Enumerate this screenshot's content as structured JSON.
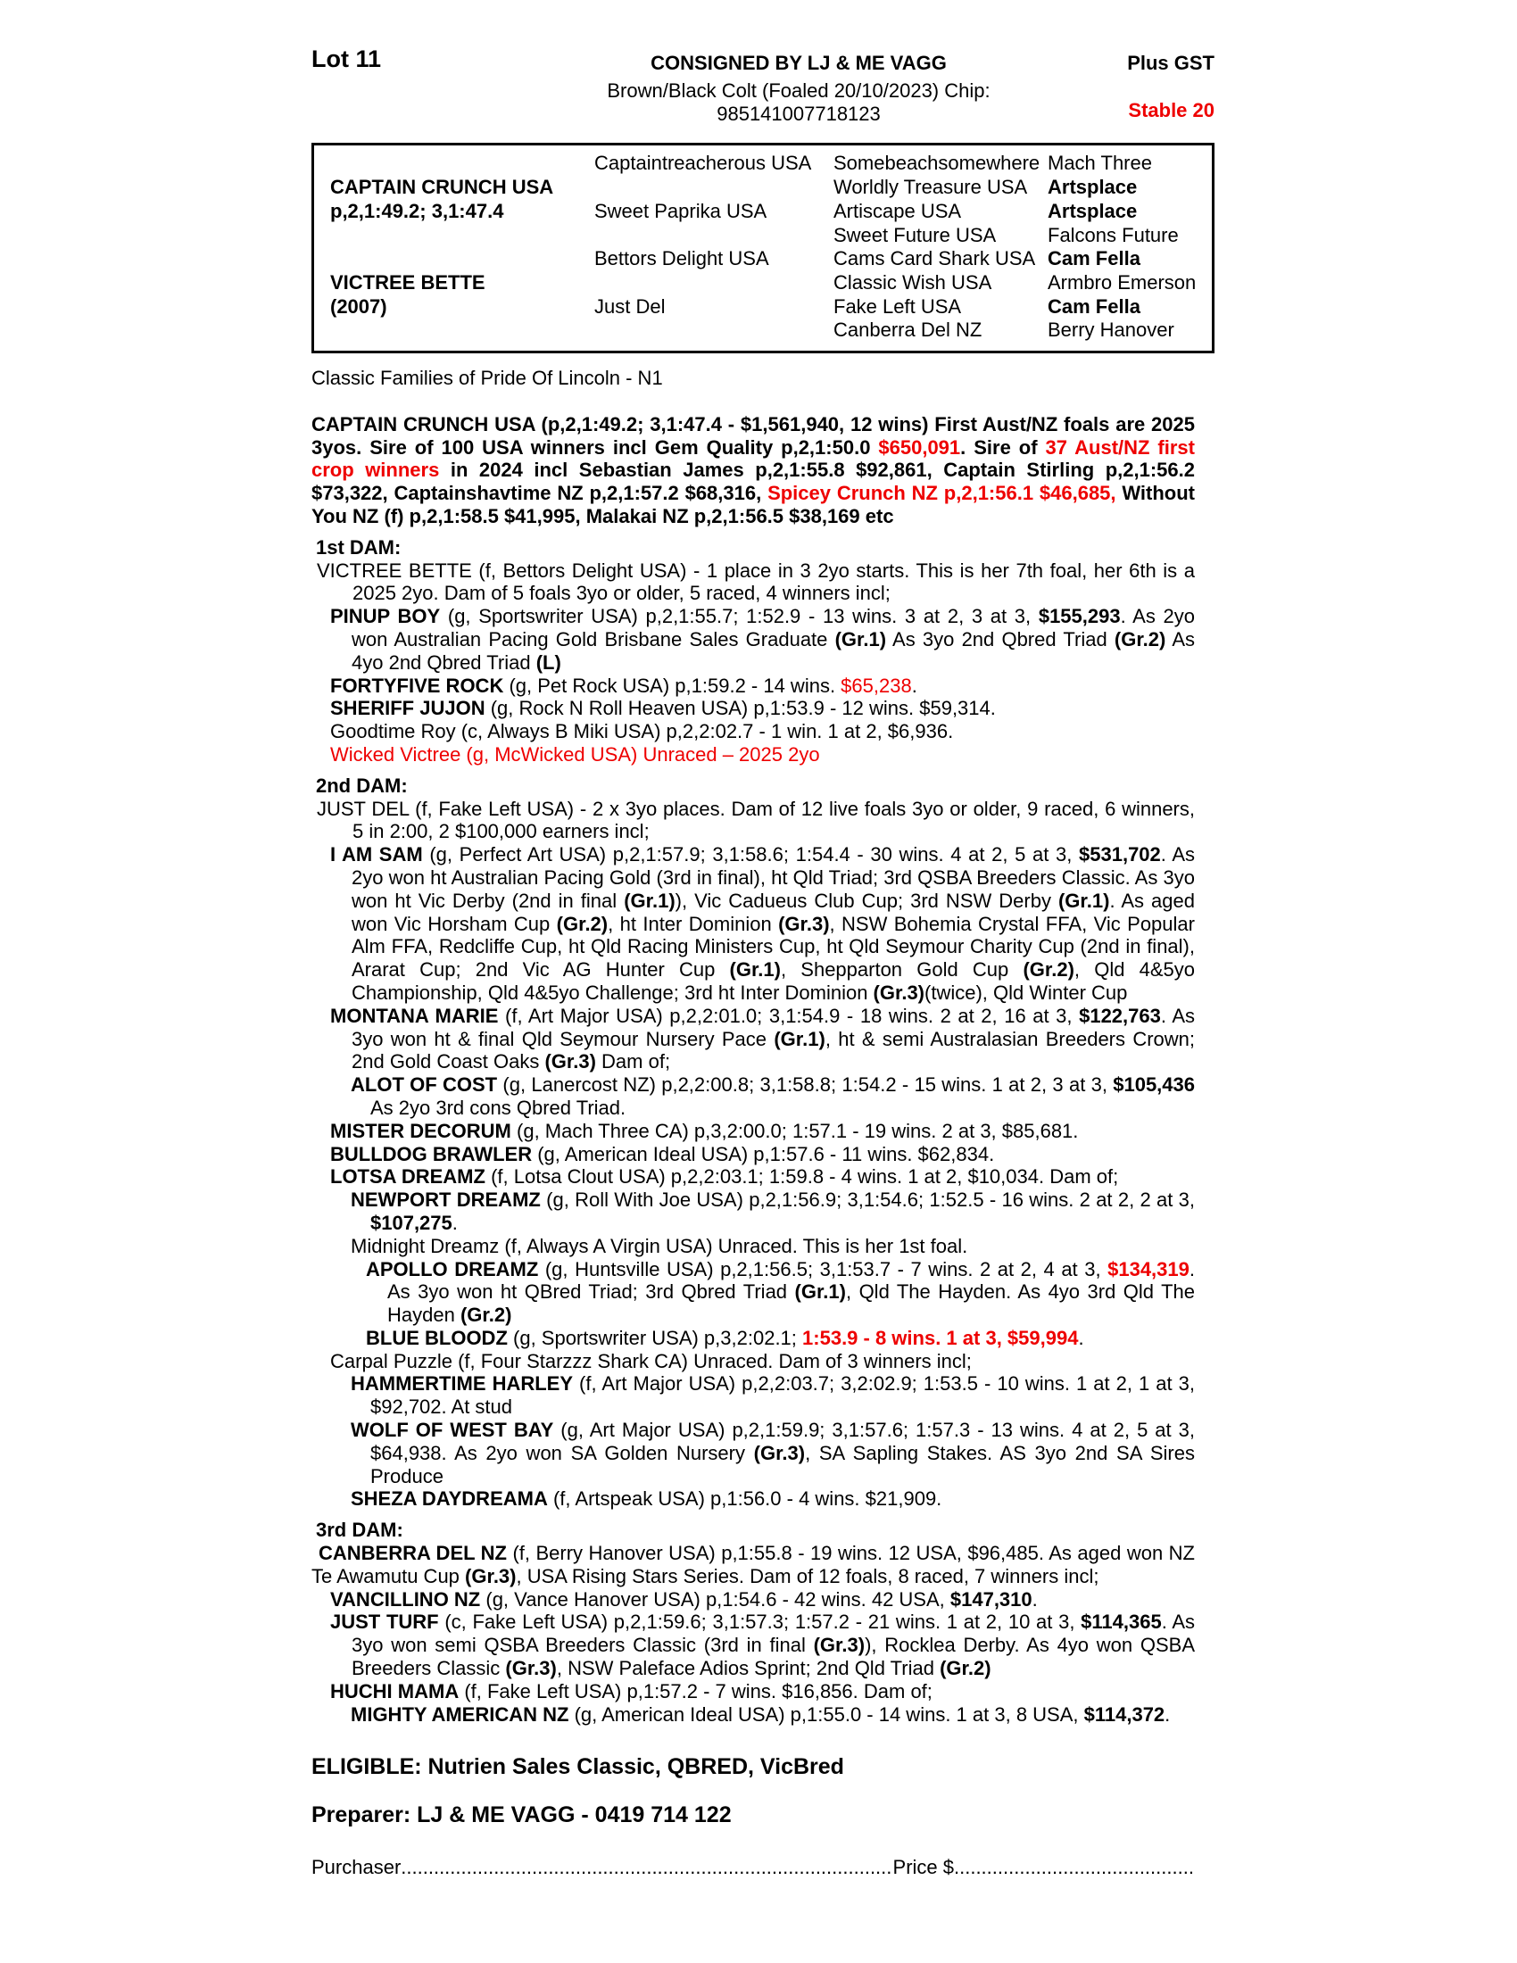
{
  "header": {
    "lot": "Lot 11",
    "consignor": "CONSIGNED BY LJ & ME VAGG",
    "gst": "Plus GST",
    "description": "Brown/Black Colt (Foaled 20/10/2023) Chip: 985141007718123",
    "stable": "Stable 20"
  },
  "colors": {
    "accent_red": "#ee0000",
    "text": "#000000"
  },
  "pedigree": {
    "rows": [
      {
        "c1": "",
        "c2": "Captaintreacherous USA",
        "c3": "Somebeachsomewhere",
        "c4": "Mach Three",
        "c4b": false
      },
      {
        "c1": "CAPTAIN CRUNCH USA",
        "c2": "",
        "c3": "Worldly Treasure USA",
        "c4": "Artsplace",
        "c4b": true
      },
      {
        "c1": "p,2,1:49.2; 3,1:47.4",
        "c2": "Sweet Paprika USA",
        "c3": "Artiscape USA",
        "c4": "Artsplace",
        "c4b": true
      },
      {
        "c1": "",
        "c2": "",
        "c3": "Sweet Future USA",
        "c4": "Falcons Future",
        "c4b": false
      },
      {
        "c1": "",
        "c2": "Bettors Delight USA",
        "c3": "Cams Card Shark USA",
        "c4": "Cam Fella",
        "c4b": true
      },
      {
        "c1": "VICTREE BETTE",
        "c2": "",
        "c3": "Classic Wish USA",
        "c4": "Armbro Emerson",
        "c4b": false
      },
      {
        "c1": "(2007)",
        "c2": "Just Del",
        "c3": "Fake Left USA",
        "c4": "Cam Fella",
        "c4b": true
      },
      {
        "c1": "",
        "c2": "",
        "c3": "Canberra Del NZ",
        "c4": "Berry Hanover",
        "c4b": false
      }
    ]
  },
  "family_line": "Classic Families of Pride Of Lincoln - N1",
  "sire_paragraph": [
    {
      "t": "CAPTAIN CRUNCH USA (p,2,1:49.2; 3,1:47.4 - $1,561,940, 12 wins) First Aust/NZ foals are 2025 3yos. Sire of 100 USA winners incl Gem Quality p,2,1:50.0 ",
      "s": "b"
    },
    {
      "t": "$650,091",
      "s": "br"
    },
    {
      "t": ". Sire of ",
      "s": "b"
    },
    {
      "t": "37 Aust/NZ first crop winners",
      "s": "br"
    },
    {
      "t": " in 2024 incl Sebastian James p,2,1:55.8 $92,861, Captain Stirling p,2,1:56.2 $73,322, Captainshavtime NZ p,2,1:57.2 $68,316, ",
      "s": "b"
    },
    {
      "t": "Spicey Crunch NZ p,2,1:56.1 $46,685,",
      "s": "br"
    },
    {
      "t": " Without You NZ (f) p,2,1:58.5 $41,995, Malakai NZ p,2,1:56.5 $38,169 etc",
      "s": "b"
    }
  ],
  "sections": [
    {
      "heading": "1st DAM:",
      "entries": [
        {
          "ind": "d",
          "segs": [
            {
              "t": "VICTREE BETTE (f, Bettors Delight USA) - 1 place in 3 2yo starts. This is her 7th foal, her 6th is a 2025 2yo. Dam of 5 foals 3yo or older, 5 raced, 4 winners incl;",
              "s": ""
            }
          ]
        },
        {
          "ind": "1",
          "segs": [
            {
              "t": "PINUP BOY",
              "s": "b"
            },
            {
              "t": " (g, Sportswriter USA) p,2,1:55.7; 1:52.9 - 13 wins. 3 at 2, 3 at 3, ",
              "s": ""
            },
            {
              "t": "$155,293",
              "s": "b"
            },
            {
              "t": ". As 2yo won Australian Pacing Gold Brisbane Sales Graduate ",
              "s": ""
            },
            {
              "t": "(Gr.1)",
              "s": "b"
            },
            {
              "t": " As 3yo 2nd Qbred Triad ",
              "s": ""
            },
            {
              "t": "(Gr.2)",
              "s": "b"
            },
            {
              "t": " As 4yo 2nd Qbred Triad ",
              "s": ""
            },
            {
              "t": "(L)",
              "s": "b"
            }
          ]
        },
        {
          "ind": "1",
          "segs": [
            {
              "t": "FORTYFIVE ROCK",
              "s": "b"
            },
            {
              "t": " (g, Pet Rock USA) p,1:59.2 - 14 wins. ",
              "s": ""
            },
            {
              "t": "$65,238",
              "s": "r"
            },
            {
              "t": ".",
              "s": ""
            }
          ]
        },
        {
          "ind": "1",
          "segs": [
            {
              "t": "SHERIFF JUJON",
              "s": "b"
            },
            {
              "t": " (g, Rock N Roll Heaven USA) p,1:53.9 - 12 wins. $59,314.",
              "s": ""
            }
          ]
        },
        {
          "ind": "1",
          "segs": [
            {
              "t": "Goodtime Roy (c, Always B Miki USA) p,2,2:02.7 - 1 win. 1 at 2, $6,936.",
              "s": ""
            }
          ]
        },
        {
          "ind": "1",
          "segs": [
            {
              "t": "Wicked Victree (g, McWicked USA) Unraced – 2025 2yo",
              "s": "r"
            }
          ]
        }
      ]
    },
    {
      "heading": "2nd DAM:",
      "entries": [
        {
          "ind": "d",
          "segs": [
            {
              "t": "JUST DEL (f, Fake Left USA) - 2 x 3yo places. Dam of 12 live foals 3yo or older, 9 raced, 6 winners, 5 in 2:00, 2 $100,000 earners incl;",
              "s": ""
            }
          ]
        },
        {
          "ind": "1",
          "segs": [
            {
              "t": "I AM SAM",
              "s": "b"
            },
            {
              "t": " (g, Perfect Art USA) p,2,1:57.9; 3,1:58.6; 1:54.4 - 30 wins. 4 at 2, 5 at 3, ",
              "s": ""
            },
            {
              "t": "$531,702",
              "s": "b"
            },
            {
              "t": ". As 2yo won ht Australian Pacing Gold (3rd in final), ht Qld Triad; 3rd QSBA Breeders Classic. As 3yo won ht Vic Derby (2nd in final ",
              "s": ""
            },
            {
              "t": "(Gr.1)",
              "s": "b"
            },
            {
              "t": "), Vic Cadueus Club Cup; 3rd NSW Derby ",
              "s": ""
            },
            {
              "t": "(Gr.1)",
              "s": "b"
            },
            {
              "t": ". As aged won Vic Horsham Cup ",
              "s": ""
            },
            {
              "t": "(Gr.2)",
              "s": "b"
            },
            {
              "t": ", ht Inter Dominion ",
              "s": ""
            },
            {
              "t": "(Gr.3)",
              "s": "b"
            },
            {
              "t": ", NSW Bohemia Crystal FFA, Vic Popular Alm FFA, Redcliffe Cup, ht Qld Racing Ministers Cup, ht Qld Seymour Charity Cup (2nd in final), Ararat Cup; 2nd Vic AG Hunter Cup ",
              "s": ""
            },
            {
              "t": "(Gr.1)",
              "s": "b"
            },
            {
              "t": ", Shepparton Gold Cup ",
              "s": ""
            },
            {
              "t": "(Gr.2)",
              "s": "b"
            },
            {
              "t": ", Qld 4&5yo Championship, Qld 4&5yo Challenge; 3rd ht Inter Dominion ",
              "s": ""
            },
            {
              "t": "(Gr.3)",
              "s": "b"
            },
            {
              "t": "(twice), Qld Winter Cup",
              "s": ""
            }
          ]
        },
        {
          "ind": "1",
          "segs": [
            {
              "t": "MONTANA MARIE",
              "s": "b"
            },
            {
              "t": " (f, Art Major USA) p,2,2:01.0; 3,1:54.9 - 18 wins. 2 at 2, 16 at 3, ",
              "s": ""
            },
            {
              "t": "$122,763",
              "s": "b"
            },
            {
              "t": ". As 3yo won ht & final Qld Seymour Nursery Pace ",
              "s": ""
            },
            {
              "t": "(Gr.1)",
              "s": "b"
            },
            {
              "t": ", ht & semi Australasian Breeders Crown; 2nd Gold Coast Oaks ",
              "s": ""
            },
            {
              "t": "(Gr.3)",
              "s": "b"
            },
            {
              "t": " Dam of;",
              "s": ""
            }
          ]
        },
        {
          "ind": "2",
          "segs": [
            {
              "t": "ALOT OF COST",
              "s": "b"
            },
            {
              "t": " (g, Lanercost NZ) p,2,2:00.8; 3,1:58.8; 1:54.2 - 15 wins. 1 at 2, 3 at 3, ",
              "s": ""
            },
            {
              "t": "$105,436",
              "s": "b"
            },
            {
              "t": " As 2yo 3rd cons Qbred Triad.",
              "s": ""
            }
          ]
        },
        {
          "ind": "1",
          "segs": [
            {
              "t": "MISTER DECORUM",
              "s": "b"
            },
            {
              "t": " (g, Mach Three CA) p,3,2:00.0; 1:57.1 - 19 wins. 2 at 3, $85,681.",
              "s": ""
            }
          ]
        },
        {
          "ind": "1",
          "segs": [
            {
              "t": "BULLDOG BRAWLER",
              "s": "b"
            },
            {
              "t": " (g, American Ideal USA) p,1:57.6 - 11 wins. $62,834.",
              "s": ""
            }
          ]
        },
        {
          "ind": "1",
          "segs": [
            {
              "t": "LOTSA DREAMZ",
              "s": "b"
            },
            {
              "t": " (f, Lotsa Clout USA) p,2,2:03.1; 1:59.8 - 4 wins. 1 at 2, $10,034. Dam of;",
              "s": ""
            }
          ]
        },
        {
          "ind": "2",
          "segs": [
            {
              "t": "NEWPORT DREAMZ",
              "s": "b"
            },
            {
              "t": " (g, Roll With Joe USA) p,2,1:56.9; 3,1:54.6; 1:52.5 - 16 wins. 2 at 2, 2 at 3, ",
              "s": ""
            },
            {
              "t": "$107,275",
              "s": "b"
            },
            {
              "t": ".",
              "s": ""
            }
          ]
        },
        {
          "ind": "2",
          "segs": [
            {
              "t": "Midnight Dreamz (f, Always A Virgin USA) Unraced. This is her 1st foal.",
              "s": ""
            }
          ]
        },
        {
          "ind": "3",
          "segs": [
            {
              "t": "APOLLO DREAMZ",
              "s": "b"
            },
            {
              "t": " (g, Huntsville USA) p,2,1:56.5; 3,1:53.7 - 7 wins. 2 at 2, 4 at 3, ",
              "s": ""
            },
            {
              "t": "$134,319",
              "s": "br"
            },
            {
              "t": ". As 3yo won ht QBred Triad; 3rd Qbred Triad ",
              "s": ""
            },
            {
              "t": "(Gr.1)",
              "s": "b"
            },
            {
              "t": ", Qld The Hayden. As 4yo 3rd Qld The Hayden ",
              "s": ""
            },
            {
              "t": "(Gr.2)",
              "s": "b"
            }
          ]
        },
        {
          "ind": "3",
          "segs": [
            {
              "t": "BLUE BLOODZ",
              "s": "b"
            },
            {
              "t": " (g, Sportswriter USA) p,3,2:02.1; ",
              "s": ""
            },
            {
              "t": "1:53.9 - 8 wins. 1 at 3, $59,994",
              "s": "br"
            },
            {
              "t": ".",
              "s": ""
            }
          ]
        },
        {
          "ind": "1",
          "segs": [
            {
              "t": "Carpal Puzzle (f, Four Starzzz Shark CA) Unraced. Dam of 3 winners incl;",
              "s": ""
            }
          ]
        },
        {
          "ind": "2",
          "segs": [
            {
              "t": "HAMMERTIME HARLEY",
              "s": "b"
            },
            {
              "t": " (f, Art Major USA) p,2,2:03.7; 3,2:02.9; 1:53.5 - 10 wins. 1 at 2, 1 at 3, $92,702. At stud",
              "s": ""
            }
          ]
        },
        {
          "ind": "2",
          "segs": [
            {
              "t": "WOLF OF WEST BAY",
              "s": "b"
            },
            {
              "t": " (g, Art Major USA) p,2,1:59.9; 3,1:57.6; 1:57.3 - 13 wins. 4 at 2, 5 at 3, $64,938. As 2yo won SA Golden Nursery ",
              "s": ""
            },
            {
              "t": "(Gr.3)",
              "s": "b"
            },
            {
              "t": ", SA Sapling Stakes. AS 3yo 2nd SA Sires Produce",
              "s": ""
            }
          ]
        },
        {
          "ind": "2",
          "segs": [
            {
              "t": "SHEZA DAYDREAMA",
              "s": "b"
            },
            {
              "t": " (f, Artspeak USA) p,1:56.0 - 4 wins. $21,909.",
              "s": ""
            }
          ]
        }
      ]
    },
    {
      "heading": "3rd DAM:",
      "entries": [
        {
          "ind": "f",
          "segs": [
            {
              "t": "CANBERRA DEL NZ",
              "s": "b"
            },
            {
              "t": " (f, Berry Hanover USA) p,1:55.8 - 19 wins. 12 USA, $96,485. As aged won NZ Te Awamutu Cup ",
              "s": ""
            },
            {
              "t": "(Gr.3)",
              "s": "b"
            },
            {
              "t": ", USA Rising Stars Series. Dam of 12 foals, 8 raced, 7 winners incl;",
              "s": ""
            }
          ]
        },
        {
          "ind": "1",
          "segs": [
            {
              "t": "VANCILLINO NZ",
              "s": "b"
            },
            {
              "t": " (g, Vance Hanover USA) p,1:54.6 - 42 wins. 42 USA, ",
              "s": ""
            },
            {
              "t": "$147,310",
              "s": "b"
            },
            {
              "t": ".",
              "s": ""
            }
          ]
        },
        {
          "ind": "1",
          "segs": [
            {
              "t": "JUST TURF",
              "s": "b"
            },
            {
              "t": " (c, Fake Left USA) p,2,1:59.6; 3,1:57.3; 1:57.2 - 21 wins. 1 at 2, 10 at 3, ",
              "s": ""
            },
            {
              "t": "$114,365",
              "s": "b"
            },
            {
              "t": ". As 3yo won semi QSBA Breeders Classic (3rd in final ",
              "s": ""
            },
            {
              "t": "(Gr.3)",
              "s": "b"
            },
            {
              "t": "), Rocklea Derby. As 4yo won QSBA Breeders Classic ",
              "s": ""
            },
            {
              "t": "(Gr.3)",
              "s": "b"
            },
            {
              "t": ", NSW Paleface Adios Sprint; 2nd Qld Triad ",
              "s": ""
            },
            {
              "t": "(Gr.2)",
              "s": "b"
            }
          ]
        },
        {
          "ind": "1",
          "segs": [
            {
              "t": "HUCHI MAMA",
              "s": "b"
            },
            {
              "t": " (f, Fake Left USA) p,1:57.2 - 7 wins. $16,856. Dam of;",
              "s": ""
            }
          ]
        },
        {
          "ind": "2",
          "segs": [
            {
              "t": "MIGHTY AMERICAN NZ",
              "s": "b"
            },
            {
              "t": " (g, American Ideal USA) p,1:55.0 - 14 wins. 1 at 3, 8 USA, ",
              "s": ""
            },
            {
              "t": "$114,372",
              "s": "b"
            },
            {
              "t": ".",
              "s": ""
            }
          ]
        }
      ]
    }
  ],
  "eligible": "ELIGIBLE: Nutrien Sales Classic, QBRED, VicBred",
  "preparer": "Preparer: LJ & ME VAGG - 0419 714 122",
  "purchaser": {
    "label": "Purchaser",
    "dots1": "........................................................................................................................................................",
    "price_label": "Price $",
    "dots2": "........................................................................................................"
  }
}
